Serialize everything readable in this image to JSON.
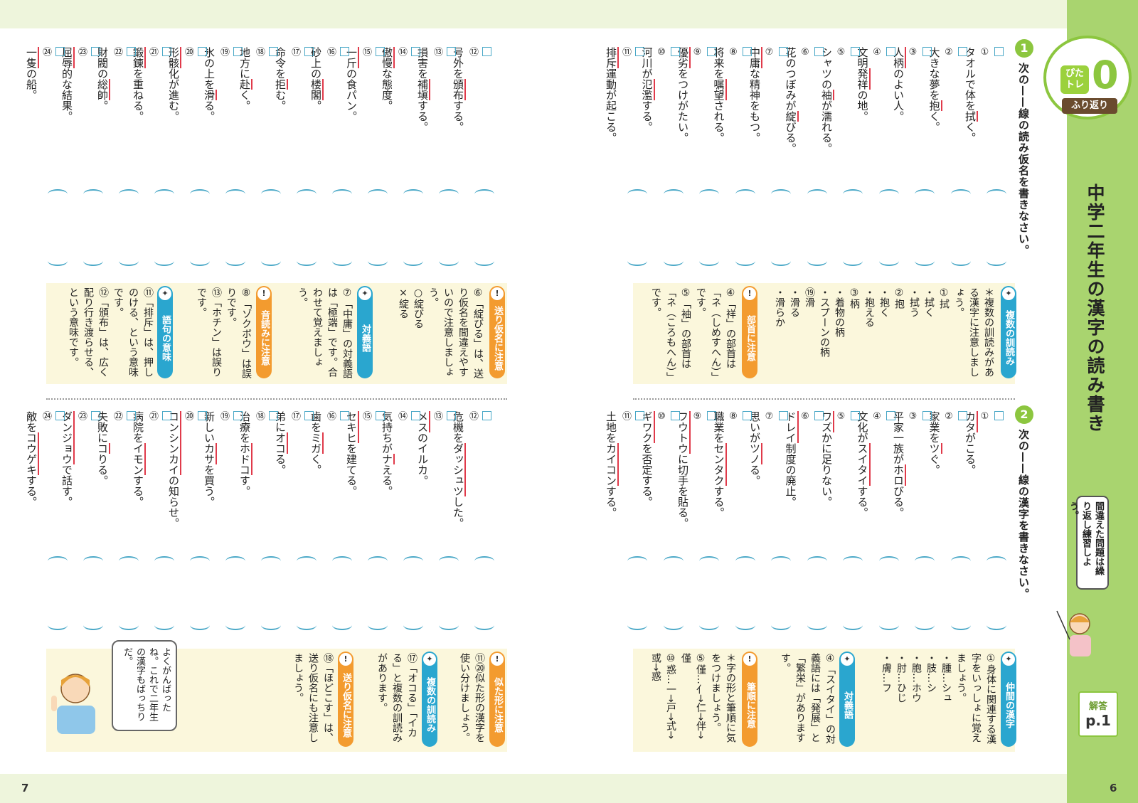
{
  "page": {
    "left_number": "7",
    "right_number": "6"
  },
  "header": {
    "logo_pita": "ぴた\nトレ",
    "logo_zero": "0",
    "logo_sub": "ふり返り",
    "title": "中学二年生の漢字の読み書き",
    "bubble": "間違えた問題は繰り返し練習しよう。",
    "answer_label": "解答",
    "answer_page": "p.1"
  },
  "section1": {
    "number": "1",
    "instruction": "次の——線の読み仮名を書きなさい。",
    "items": [
      {
        "n": "①",
        "pre": "タオルで体を",
        "u": "拭",
        "post": "く。"
      },
      {
        "n": "②",
        "pre": "大きな夢を",
        "u": "抱",
        "post": "く。"
      },
      {
        "n": "③",
        "pre": "",
        "u": "人柄",
        "post": "のよい人。"
      },
      {
        "n": "④",
        "pre": "文明",
        "u": "発祥",
        "post": "の地。"
      },
      {
        "n": "⑤",
        "pre": "シャツの",
        "u": "袖",
        "post": "が濡れる。"
      },
      {
        "n": "⑥",
        "pre": "花のつぼみが",
        "u": "綻",
        "post": "びる。"
      },
      {
        "n": "⑦",
        "pre": "",
        "u": "中庸",
        "post": "な精神をもつ。"
      },
      {
        "n": "⑧",
        "pre": "将来を",
        "u": "嘱望",
        "post": "される。"
      },
      {
        "n": "⑨",
        "pre": "",
        "u": "優劣",
        "post": "をつけがたい。"
      },
      {
        "n": "⑩",
        "pre": "河川が",
        "u": "氾濫",
        "post": "する。"
      },
      {
        "n": "⑪",
        "pre": "",
        "u": "排斥",
        "post": "運動が起こる。"
      },
      {
        "n": "⑫",
        "pre": "号外を",
        "u": "頒布",
        "post": "する。"
      },
      {
        "n": "⑬",
        "pre": "損害を",
        "u": "補塡",
        "post": "する。"
      },
      {
        "n": "⑭",
        "pre": "",
        "u": "傲慢",
        "post": "な態度。"
      },
      {
        "n": "⑮",
        "pre": "",
        "u": "一斤",
        "post": "の食パン。"
      },
      {
        "n": "⑯",
        "pre": "砂上の",
        "u": "楼閣",
        "post": "。"
      },
      {
        "n": "⑰",
        "pre": "命令を",
        "u": "拒",
        "post": "む。"
      },
      {
        "n": "⑱",
        "pre": "地方に",
        "u": "赴",
        "post": "く。"
      },
      {
        "n": "⑲",
        "pre": "氷の上を",
        "u": "滑",
        "post": "る。"
      },
      {
        "n": "⑳",
        "pre": "",
        "u": "形骸",
        "post": "化が進む。"
      },
      {
        "n": "㉑",
        "pre": "",
        "u": "鍛錬",
        "post": "を重ねる。"
      },
      {
        "n": "㉒",
        "pre": "財閥の",
        "u": "総帥",
        "post": "。"
      },
      {
        "n": "㉓",
        "pre": "",
        "u": "屈辱",
        "post": "的な結果。"
      },
      {
        "n": "㉔",
        "pre": "",
        "u": "一隻",
        "post": "の船。"
      }
    ],
    "notes": {
      "fukusu_label": "複数の訓読み",
      "fukusu_text": "＊複数の訓読みがある漢字に注意しましょう。\n①拭\n・拭く\n・拭う\n②抱\n・抱く\n・抱える\n③柄\n・着物の柄\n・スプーンの柄\n⑲滑\n・滑る\n・滑らか",
      "bushu_label": "部首に注意",
      "bushu_text": "④「祥」の部首は「ネ（しめすへん）」です。\n⑤「袖」の部首は「ネ（ころもへん）」です。",
      "okuri_label": "送り仮名に注意",
      "okuri_text": "⑥「綻びる」は、送り仮名を間違えやすいので注意しましょう。\n○綻びる\n×綻る",
      "taigi_label": "対義語",
      "taigi_text": "⑦「中庸」の対義語は「極端」です。合わせて覚えましょう。",
      "onyomi_label": "音読みに注意",
      "onyomi_text": "⑧「ゾクボウ」は誤りです。\n⑬「ホチン」は誤りです。",
      "goku_label": "語句の意味",
      "goku_text": "⑪「排斥」は、押しのける、という意味です。\n⑫「頒布」は、広く配り行き渡らせる、という意味です。"
    }
  },
  "section2": {
    "number": "2",
    "instruction": "次の——線の漢字を書きなさい。",
    "items": [
      {
        "n": "①",
        "pre": "",
        "u": "カタ",
        "post": "がこる。"
      },
      {
        "n": "②",
        "pre": "家業を",
        "u": "ツ",
        "post": "ぐ。"
      },
      {
        "n": "③",
        "pre": "平家一族が",
        "u": "ホロ",
        "post": "びる。"
      },
      {
        "n": "④",
        "pre": "文化が",
        "u": "スイタイ",
        "post": "する。"
      },
      {
        "n": "⑤",
        "pre": "",
        "u": "ワズ",
        "post": "かに足りない。"
      },
      {
        "n": "⑥",
        "pre": "",
        "u": "ドレイ",
        "post": "制度の廃止。"
      },
      {
        "n": "⑦",
        "pre": "思いが",
        "u": "ツノ",
        "post": "る。"
      },
      {
        "n": "⑧",
        "pre": "職業を",
        "u": "センタク",
        "post": "する。"
      },
      {
        "n": "⑨",
        "pre": "",
        "u": "フウトウ",
        "post": "に切手を貼る。"
      },
      {
        "n": "⑩",
        "pre": "",
        "u": "ギワク",
        "post": "を否定する。"
      },
      {
        "n": "⑪",
        "pre": "土地を",
        "u": "カイコン",
        "post": "する。"
      },
      {
        "n": "⑫",
        "pre": "危機を",
        "u": "ダッシュツ",
        "post": "した。"
      },
      {
        "n": "⑬",
        "pre": "",
        "u": "メス",
        "post": "のイルカ。"
      },
      {
        "n": "⑭",
        "pre": "気持ちが",
        "u": "ナ",
        "post": "える。"
      },
      {
        "n": "⑮",
        "pre": "",
        "u": "セキヒ",
        "post": "を建てる。"
      },
      {
        "n": "⑯",
        "pre": "歯を",
        "u": "ミガ",
        "post": "く。"
      },
      {
        "n": "⑰",
        "pre": "弟に",
        "u": "オコ",
        "post": "る。"
      },
      {
        "n": "⑱",
        "pre": "治療を",
        "u": "ホドコ",
        "post": "す。"
      },
      {
        "n": "⑲",
        "pre": "新しい",
        "u": "カサ",
        "post": "を買う。"
      },
      {
        "n": "⑳",
        "pre": "",
        "u": "コンシンカイ",
        "post": "の知らせ。"
      },
      {
        "n": "㉑",
        "pre": "病院を",
        "u": "イモン",
        "post": "する。"
      },
      {
        "n": "㉒",
        "pre": "失敗に",
        "u": "コ",
        "post": "りる。"
      },
      {
        "n": "㉓",
        "pre": "",
        "u": "ダンジョウ",
        "post": "で話す。"
      },
      {
        "n": "㉔",
        "pre": "敵を",
        "u": "コウゲキ",
        "post": "する。"
      }
    ],
    "notes": {
      "nakama_label": "仲間の漢字",
      "nakama_text": "①身体に関連する漢字をいっしょに覚えましょう。\n・腫…シュ\n・肢…シ\n・胞…ホウ\n・肘…ひじ\n・膚…フ",
      "taigi_label": "対義語",
      "taigi_text": "④「スイタイ」の対義語には「発展」と「繁栄」がありますす。",
      "hitsujun_label": "筆順に注意",
      "hitsujun_text": "＊字の形と筆順に気をつけましょう。\n⑤僅…亻→仁→伴→僅\n⑩惑…一→戸→式→或→惑",
      "nita_label": "似た形に注意",
      "nita_text": "⑪⑳似た形の漢字を使い分けましょう。",
      "fukusu_label": "複数の訓読み",
      "fukusu_text": "⑰「オコる」「イカる」と複数の訓読みがあります。",
      "okuri_label": "送り仮名に注意",
      "okuri_text": "⑱「ほどこす」は、送り仮名にも注意しましょう。",
      "speech": "よくがんばったね。これで二年生の漢字もばっちりだ。"
    }
  }
}
